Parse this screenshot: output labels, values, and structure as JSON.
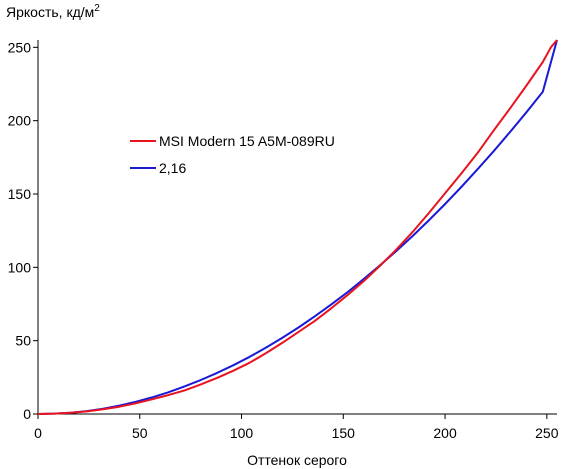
{
  "chart_data": {
    "type": "line",
    "ylabel": "Яркость, кд/м",
    "ylabel_sup": "2",
    "xlabel": "Оттенок серого",
    "xlim": [
      0,
      255
    ],
    "ylim": [
      0,
      255
    ],
    "x_ticks": [
      0,
      50,
      100,
      150,
      200,
      250
    ],
    "y_ticks": [
      0,
      50,
      100,
      150,
      200,
      250
    ],
    "grid": false,
    "legend_position": "center-left",
    "series": [
      {
        "name": "MSI Modern 15 A5M-089RU",
        "color": "#e8131e",
        "x": [
          0,
          8,
          16,
          24,
          32,
          40,
          48,
          56,
          64,
          72,
          80,
          88,
          96,
          104,
          112,
          120,
          128,
          136,
          144,
          152,
          160,
          168,
          176,
          184,
          192,
          200,
          208,
          216,
          224,
          232,
          240,
          248,
          252,
          255
        ],
        "y": [
          0,
          0.3,
          0.8,
          1.8,
          3.2,
          5.0,
          7.3,
          10.0,
          12.9,
          16.1,
          20.2,
          24.6,
          29.5,
          35.0,
          41.5,
          48.5,
          56.0,
          63.5,
          72.0,
          81.0,
          90.5,
          101.0,
          112.0,
          124.0,
          137.0,
          150.5,
          164.0,
          178.0,
          193.5,
          208.5,
          224.0,
          240.0,
          250.0,
          255.0
        ]
      },
      {
        "name": "2,16",
        "color": "#1a1ad6",
        "x": [
          0,
          8,
          16,
          24,
          32,
          40,
          48,
          56,
          64,
          72,
          80,
          88,
          96,
          104,
          112,
          120,
          128,
          136,
          144,
          152,
          160,
          168,
          176,
          184,
          192,
          200,
          208,
          216,
          224,
          232,
          240,
          248,
          255
        ],
        "y": [
          0,
          0.3,
          0.9,
          2.0,
          3.6,
          5.7,
          8.3,
          11.3,
          14.8,
          18.8,
          23.2,
          28.0,
          33.3,
          39.0,
          45.3,
          51.9,
          59.0,
          66.6,
          74.6,
          83.0,
          91.9,
          101.3,
          111.1,
          121.3,
          132.0,
          143.2,
          154.8,
          166.9,
          179.4,
          192.4,
          205.8,
          219.7,
          255.0
        ]
      }
    ]
  }
}
